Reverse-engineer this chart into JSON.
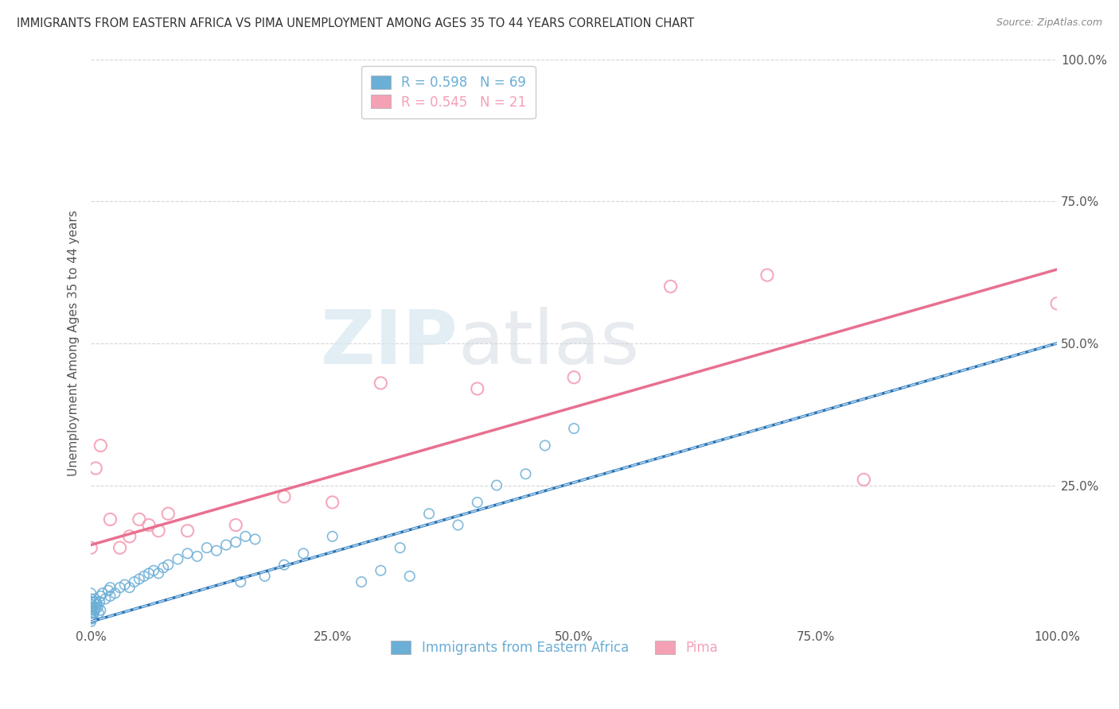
{
  "title": "IMMIGRANTS FROM EASTERN AFRICA VS PIMA UNEMPLOYMENT AMONG AGES 35 TO 44 YEARS CORRELATION CHART",
  "source": "Source: ZipAtlas.com",
  "ylabel": "Unemployment Among Ages 35 to 44 years",
  "legend_label1": "Immigrants from Eastern Africa",
  "legend_label2": "Pima",
  "R1": 0.598,
  "N1": 69,
  "R2": 0.545,
  "N2": 21,
  "color_blue": "#6baed6",
  "color_pink": "#f4a0b5",
  "watermark_zip": "ZIP",
  "watermark_atlas": "atlas",
  "background_color": "#ffffff",
  "blue_scatter_x": [
    0.0,
    0.0,
    0.0,
    0.0,
    0.0,
    0.0,
    0.0,
    0.0,
    0.0,
    0.0,
    0.1,
    0.1,
    0.1,
    0.2,
    0.2,
    0.3,
    0.3,
    0.4,
    0.4,
    0.5,
    0.5,
    0.6,
    0.7,
    0.8,
    0.9,
    1.0,
    1.0,
    1.2,
    1.5,
    1.8,
    2.0,
    2.0,
    2.5,
    3.0,
    3.5,
    4.0,
    4.5,
    5.0,
    5.5,
    6.0,
    6.5,
    7.0,
    7.5,
    8.0,
    9.0,
    10.0,
    11.0,
    12.0,
    13.0,
    14.0,
    15.0,
    15.5,
    16.0,
    17.0,
    18.0,
    20.0,
    22.0,
    25.0,
    28.0,
    30.0,
    32.0,
    33.0,
    35.0,
    38.0,
    40.0,
    42.0,
    45.0,
    47.0,
    50.0
  ],
  "blue_scatter_y": [
    1.0,
    1.5,
    2.0,
    2.5,
    3.0,
    3.5,
    4.0,
    4.5,
    5.0,
    6.0,
    1.5,
    2.5,
    4.0,
    2.0,
    3.5,
    2.5,
    4.5,
    3.0,
    5.0,
    3.5,
    4.5,
    4.0,
    3.5,
    2.5,
    4.5,
    3.0,
    5.5,
    6.0,
    5.0,
    6.5,
    5.5,
    7.0,
    6.0,
    7.0,
    7.5,
    7.0,
    8.0,
    8.5,
    9.0,
    9.5,
    10.0,
    9.5,
    10.5,
    11.0,
    12.0,
    13.0,
    12.5,
    14.0,
    13.5,
    14.5,
    15.0,
    8.0,
    16.0,
    15.5,
    9.0,
    11.0,
    13.0,
    16.0,
    8.0,
    10.0,
    14.0,
    9.0,
    20.0,
    18.0,
    22.0,
    25.0,
    27.0,
    32.0,
    35.0
  ],
  "pink_scatter_x": [
    0.0,
    0.5,
    1.0,
    2.0,
    3.0,
    4.0,
    5.0,
    6.0,
    7.0,
    8.0,
    10.0,
    15.0,
    20.0,
    25.0,
    30.0,
    40.0,
    50.0,
    60.0,
    70.0,
    80.0,
    100.0
  ],
  "pink_scatter_y": [
    14.0,
    28.0,
    32.0,
    19.0,
    14.0,
    16.0,
    19.0,
    18.0,
    17.0,
    20.0,
    17.0,
    18.0,
    23.0,
    22.0,
    43.0,
    42.0,
    44.0,
    60.0,
    62.0,
    26.0,
    57.0
  ],
  "blue_line_x": [
    0.0,
    100.0
  ],
  "blue_line_y": [
    1.0,
    50.0
  ],
  "pink_line_x": [
    0.0,
    100.0
  ],
  "pink_line_y": [
    14.5,
    63.0
  ],
  "xlim": [
    0,
    100
  ],
  "ylim": [
    0,
    100
  ],
  "xtick_positions": [
    0,
    25,
    50,
    75,
    100
  ],
  "xtick_labels": [
    "0.0%",
    "25.0%",
    "50.0%",
    "75.0%",
    "100.0%"
  ],
  "ytick_positions": [
    0,
    25,
    50,
    75,
    100
  ],
  "ytick_labels": [
    "",
    "25.0%",
    "50.0%",
    "75.0%",
    "100.0%"
  ]
}
